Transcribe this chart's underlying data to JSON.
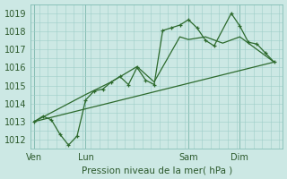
{
  "title": "",
  "xlabel": "Pression niveau de la mer( hPa )",
  "bg_color": "#cce8e4",
  "line_color": "#2d6a2d",
  "grid_color": "#9ecec8",
  "xtick_labels": [
    "Ven",
    "Lun",
    "Sam",
    "Dim"
  ],
  "xtick_positions": [
    0,
    3,
    9,
    12
  ],
  "ylim": [
    1011.5,
    1019.5
  ],
  "yticks": [
    1012,
    1013,
    1014,
    1015,
    1016,
    1017,
    1018,
    1019
  ],
  "xlim": [
    -0.2,
    14.5
  ],
  "line1_x": [
    0,
    0.5,
    1.0,
    1.5,
    2.0,
    2.5,
    3.0,
    3.5,
    4.0,
    4.5,
    5.0,
    5.5,
    6.0,
    6.5,
    7.0,
    7.5,
    8.0,
    8.5,
    9.0,
    9.5,
    10.0,
    10.5,
    11.5,
    12.0,
    12.5,
    13.0,
    13.5,
    14.0
  ],
  "line1_y": [
    1013.0,
    1013.3,
    1013.1,
    1012.3,
    1011.7,
    1012.2,
    1014.2,
    1014.7,
    1014.8,
    1015.2,
    1015.5,
    1015.05,
    1016.0,
    1015.3,
    1015.05,
    1018.05,
    1018.2,
    1018.35,
    1018.65,
    1018.2,
    1017.5,
    1017.2,
    1019.0,
    1018.3,
    1017.4,
    1017.3,
    1016.8,
    1016.3
  ],
  "line2_x": [
    0,
    3.0,
    4.5,
    6.0,
    7.0,
    8.5,
    9.0,
    10.0,
    11.0,
    12.0,
    14.0
  ],
  "line2_y": [
    1013.0,
    1014.5,
    1015.2,
    1016.05,
    1015.2,
    1017.7,
    1017.55,
    1017.7,
    1017.35,
    1017.7,
    1016.3
  ],
  "line3_x": [
    0,
    14.0
  ],
  "line3_y": [
    1013.0,
    1016.3
  ]
}
